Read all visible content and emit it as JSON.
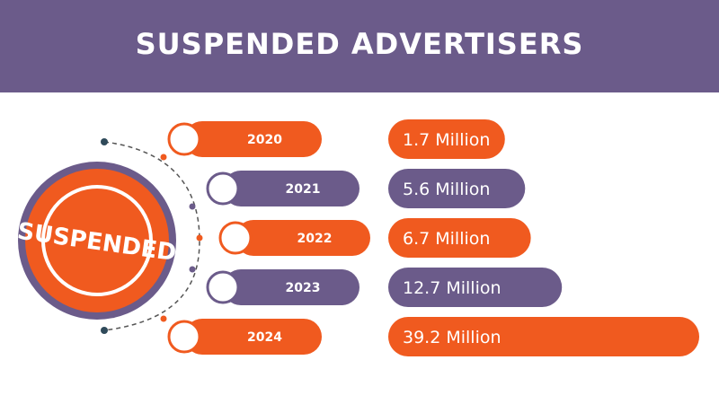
{
  "title": "SUSPENDED ADVERTISERS",
  "stamp": {
    "text": "SUSPENDED"
  },
  "colors": {
    "purple": "#6b5b8a",
    "orange": "#f05a1f",
    "ring": "#6b5b8a",
    "dark": "#2f4a5a"
  },
  "chart_data": {
    "type": "bar",
    "title": "SUSPENDED ADVERTISERS",
    "xlabel": "",
    "ylabel": "",
    "categories": [
      "2020",
      "2021",
      "2022",
      "2023",
      "2024"
    ],
    "values": [
      1.7,
      5.6,
      6.7,
      12.7,
      39.2
    ],
    "value_labels": [
      "1.7 Million",
      "5.6 Million",
      "6.7 Million",
      "12.7 Million",
      "39.2 Million"
    ],
    "bar_colors": [
      "orange",
      "purple",
      "orange",
      "purple",
      "orange"
    ],
    "grid": false,
    "legend": "none"
  }
}
